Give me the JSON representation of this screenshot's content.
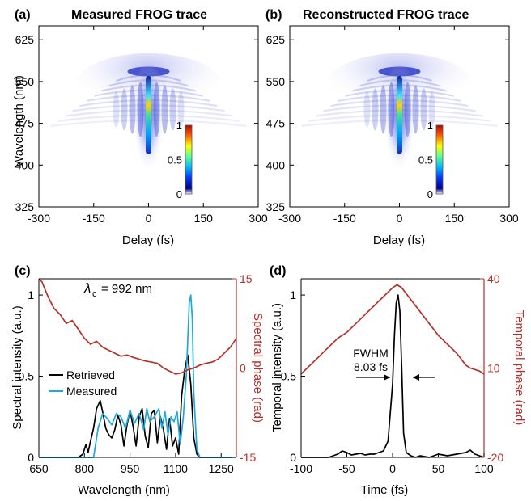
{
  "colors": {
    "retrieved": "#000000",
    "measured": "#1ea8dc",
    "phase": "#b5302b",
    "axis": "#000000"
  },
  "chart_data": [
    {
      "type": "heatmap",
      "panel_label": "(a)",
      "title": "Measured FROG trace",
      "xlabel": "Delay (fs)",
      "ylabel": "Wavelength (nm)",
      "xlim": [
        -300,
        300
      ],
      "ylim": [
        325,
        650
      ],
      "xticks": [
        "-300",
        "-150",
        "0",
        "150",
        "300"
      ],
      "yticks": [
        "325",
        "400",
        "475",
        "550",
        "625"
      ],
      "colorbar": {
        "range": [
          0,
          1
        ],
        "ticks": [
          "0",
          "0.5",
          "1"
        ],
        "colormap": "jet"
      }
    },
    {
      "type": "heatmap",
      "panel_label": "(b)",
      "title": "Reconstructed FROG trace",
      "xlabel": "Delay (fs)",
      "ylabel": "",
      "xlim": [
        -300,
        300
      ],
      "ylim": [
        325,
        650
      ],
      "xticks": [
        "-300",
        "-150",
        "0",
        "150",
        "300"
      ],
      "yticks": [
        "325",
        "400",
        "475",
        "550",
        "625"
      ],
      "colorbar": {
        "range": [
          0,
          1
        ],
        "ticks": [
          "0",
          "0.5",
          "1"
        ],
        "colormap": "jet"
      }
    },
    {
      "type": "line",
      "panel_label": "(c)",
      "xlabel": "Wavelength (nm)",
      "ylabel": "Spectral intensity (a.u.)",
      "ylabel_right": "Spectral phase (rad)",
      "xlim": [
        650,
        1300
      ],
      "ylim": [
        0,
        1.1
      ],
      "ylim_right": [
        -15,
        15
      ],
      "xticks": [
        "650",
        "800",
        "950",
        "1100",
        "1250"
      ],
      "yticks": [
        "0",
        "0.5",
        "1"
      ],
      "yticks_right": [
        "-15",
        "0",
        "15"
      ],
      "annotation": {
        "symbol": "λ",
        "subscript": "c",
        "text": "= 992 nm"
      },
      "series": [
        {
          "name": "Retrieved",
          "axis": "left",
          "x": [
            650,
            780,
            795,
            805,
            812,
            820,
            830,
            840,
            852,
            862,
            870,
            880,
            890,
            900,
            910,
            920,
            930,
            940,
            950,
            960,
            970,
            980,
            990,
            1000,
            1010,
            1020,
            1030,
            1040,
            1050,
            1060,
            1070,
            1080,
            1090,
            1100,
            1110,
            1120,
            1130,
            1140,
            1150,
            1160,
            1170,
            1180,
            1300
          ],
          "values": [
            0,
            0,
            0.02,
            0.08,
            0.03,
            0.1,
            0.18,
            0.3,
            0.35,
            0.26,
            0.18,
            0.14,
            0.12,
            0.17,
            0.26,
            0.2,
            0.07,
            0.2,
            0.29,
            0.19,
            0.07,
            0.25,
            0.3,
            0.13,
            0.06,
            0.27,
            0.29,
            0.09,
            0.25,
            0.17,
            0.05,
            0.24,
            0.07,
            0.12,
            0.02,
            0.38,
            0.54,
            0.63,
            0.45,
            0.12,
            0.02,
            0,
            0
          ]
        },
        {
          "name": "Measured",
          "axis": "left",
          "x": [
            650,
            830,
            845,
            860,
            875,
            890,
            905,
            920,
            935,
            950,
            965,
            980,
            995,
            1005,
            1015,
            1030,
            1045,
            1055,
            1065,
            1075,
            1085,
            1095,
            1105,
            1115,
            1125,
            1135,
            1145,
            1150,
            1155,
            1160,
            1170,
            1180,
            1300
          ],
          "values": [
            0,
            0,
            0.18,
            0.27,
            0.24,
            0.2,
            0.27,
            0.25,
            0.18,
            0.29,
            0.21,
            0.27,
            0.17,
            0.3,
            0.22,
            0.25,
            0.3,
            0.18,
            0.28,
            0.14,
            0.25,
            0.22,
            0.28,
            0.08,
            0.24,
            0.5,
            0.95,
            1.0,
            0.85,
            0.4,
            0.05,
            0,
            0
          ]
        },
        {
          "name": "",
          "axis": "right",
          "x": [
            650,
            660,
            680,
            700,
            720,
            740,
            760,
            780,
            800,
            820,
            840,
            860,
            880,
            900,
            920,
            940,
            960,
            980,
            1000,
            1020,
            1040,
            1060,
            1080,
            1100,
            1120,
            1140,
            1160,
            1180,
            1200,
            1220,
            1240,
            1260,
            1280,
            1300
          ],
          "values": [
            15,
            14.5,
            12,
            10,
            9,
            7.5,
            8,
            6.5,
            5,
            4,
            4.5,
            3.5,
            3,
            2.5,
            2,
            2.2,
            1.8,
            1.5,
            1.2,
            1,
            0.8,
            0,
            -0.5,
            -1,
            -0.8,
            -0.3,
            0,
            0.5,
            0.8,
            1,
            1.5,
            2.5,
            3.5,
            5
          ]
        }
      ]
    },
    {
      "type": "line",
      "panel_label": "(d)",
      "xlabel": "Time (fs)",
      "ylabel": "Temporal intensity (a.u.)",
      "ylabel_right": "Temporal phase (rad)",
      "xlim": [
        -100,
        100
      ],
      "ylim": [
        0,
        1.1
      ],
      "ylim_right": [
        -20,
        40
      ],
      "xticks": [
        "-100",
        "-50",
        "0",
        "50",
        "100"
      ],
      "yticks": [
        "0",
        "0.5",
        "1"
      ],
      "yticks_right": [
        "-20",
        "10",
        "40"
      ],
      "annotation": {
        "text": "FWHM",
        "value": "8.03 fs"
      },
      "series": [
        {
          "name": "",
          "axis": "left",
          "x": [
            -100,
            -70,
            -60,
            -55,
            -50,
            -45,
            -40,
            -35,
            -30,
            -25,
            -20,
            -15,
            -10,
            -5,
            0,
            2,
            4,
            6,
            8,
            10,
            12,
            15,
            20,
            25,
            30,
            40,
            50,
            60,
            70,
            80,
            85,
            90,
            100
          ],
          "values": [
            0,
            0,
            0.02,
            0.04,
            0.03,
            0.015,
            0.02,
            0.025,
            0.015,
            0.02,
            0.02,
            0.03,
            0.04,
            0.1,
            0.45,
            0.75,
            0.95,
            1.0,
            0.9,
            0.55,
            0.15,
            0.03,
            0.01,
            0,
            0.01,
            0,
            0.02,
            0.01,
            0.02,
            0.03,
            0.045,
            0.02,
            0
          ]
        },
        {
          "name": "",
          "axis": "right",
          "x": [
            -100,
            -90,
            -80,
            -70,
            -60,
            -50,
            -40,
            -30,
            -20,
            -10,
            0,
            5,
            10,
            15,
            20,
            30,
            40,
            50,
            60,
            70,
            75,
            80,
            85,
            90,
            95,
            100
          ],
          "values": [
            8,
            11,
            14,
            17,
            20,
            22,
            25,
            28,
            31,
            34,
            37,
            38,
            37,
            35,
            33,
            29,
            25,
            21,
            18,
            15,
            13,
            11,
            10,
            9.5,
            9,
            8
          ]
        }
      ]
    }
  ]
}
